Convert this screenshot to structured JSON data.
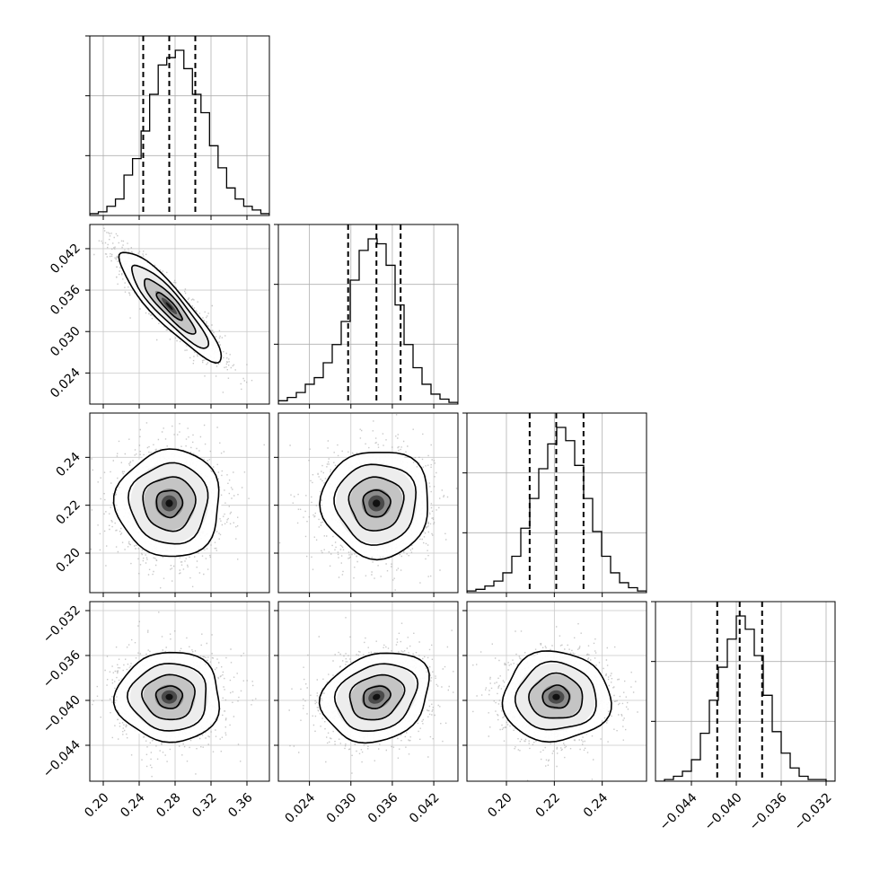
{
  "chart_data": {
    "type": "corner",
    "title": "",
    "grid": true,
    "parameters": [
      {
        "range": [
          0.185,
          0.385
        ],
        "ticks": [
          0.2,
          0.24,
          0.28,
          0.32,
          0.36
        ],
        "tick_labels": [
          "0.20",
          "0.24",
          "0.28",
          "0.32",
          "0.36"
        ],
        "quantiles": [
          0.2445,
          0.2735,
          0.3025
        ]
      },
      {
        "range": [
          0.0195,
          0.0455
        ],
        "ticks": [
          0.024,
          0.03,
          0.036,
          0.042
        ],
        "tick_labels": [
          "0.024",
          "0.030",
          "0.036",
          "0.042"
        ],
        "quantiles": [
          0.0296,
          0.0337,
          0.0372
        ]
      },
      {
        "range": [
          0.1835,
          0.2585
        ],
        "ticks": [
          0.2,
          0.22,
          0.24
        ],
        "tick_labels": [
          "0.20",
          "0.22",
          "0.24"
        ],
        "quantiles": [
          0.2097,
          0.2208,
          0.2322
        ]
      },
      {
        "range": [
          -0.0472,
          -0.0312
        ],
        "ticks": [
          -0.044,
          -0.04,
          -0.036,
          -0.032
        ],
        "tick_labels": [
          "−0.044",
          "−0.040",
          "−0.036",
          "−0.032"
        ],
        "quantiles": [
          -0.0417,
          -0.0397,
          -0.0377
        ]
      }
    ],
    "histograms": [
      [
        1,
        2,
        5,
        9,
        22,
        31,
        46,
        66,
        82,
        86,
        90,
        80,
        66,
        56,
        38,
        26,
        15,
        9,
        5,
        3,
        1
      ],
      [
        2,
        4,
        7,
        12,
        16,
        25,
        36,
        50,
        75,
        93,
        100,
        97,
        84,
        60,
        36,
        22,
        12,
        6,
        3,
        1
      ],
      [
        1,
        2,
        4,
        7,
        12,
        22,
        39,
        57,
        75,
        90,
        100,
        92,
        77,
        57,
        37,
        22,
        12,
        6,
        3,
        1
      ],
      [
        0,
        1,
        3,
        6,
        13,
        29,
        49,
        69,
        86,
        100,
        92,
        76,
        52,
        30,
        17,
        8,
        3,
        1,
        1,
        0
      ]
    ],
    "pairs": [
      {
        "x": 0,
        "y": 1,
        "mean": [
          0.2735,
          0.0337
        ],
        "sd": [
          0.0285,
          0.004
        ],
        "rho": -0.9
      },
      {
        "x": 0,
        "y": 2,
        "mean": [
          0.2735,
          0.2208
        ],
        "sd": [
          0.029,
          0.0112
        ],
        "rho": 0.0
      },
      {
        "x": 1,
        "y": 2,
        "mean": [
          0.0337,
          0.2208
        ],
        "sd": [
          0.0039,
          0.0112
        ],
        "rho": 0.0
      },
      {
        "x": 0,
        "y": 3,
        "mean": [
          0.2735,
          -0.0397
        ],
        "sd": [
          0.029,
          0.002
        ],
        "rho": 0.0
      },
      {
        "x": 1,
        "y": 3,
        "mean": [
          0.0337,
          -0.0397
        ],
        "sd": [
          0.0039,
          0.002
        ],
        "rho": 0.2
      },
      {
        "x": 2,
        "y": 3,
        "mean": [
          0.2208,
          -0.0397
        ],
        "sd": [
          0.0112,
          0.002
        ],
        "rho": 0.0
      }
    ],
    "histogram_y_gridlines": 3,
    "contour_levels_sigma": [
      0.5,
      1.0,
      1.5,
      2.0
    ]
  }
}
